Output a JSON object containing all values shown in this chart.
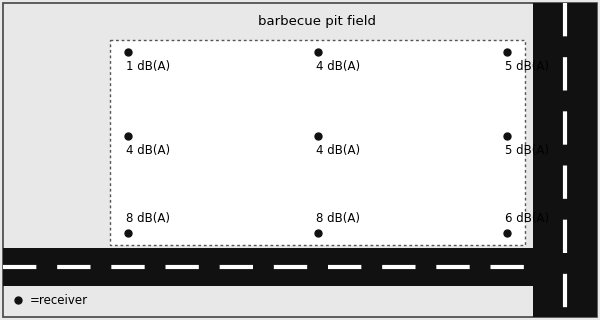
{
  "title": "barbecue pit field",
  "background_color": "#e8e8e8",
  "field_bg_color": "#ffffff",
  "road_color": "#111111",
  "dashed_color": "#ffffff",
  "dot_color": "#111111",
  "dot_size": 5,
  "font_size": 8.5,
  "title_font_size": 9.5,
  "labels": [
    "1 dB(A)",
    "4 dB(A)",
    "5 dB(A)",
    "4 dB(A)",
    "4 dB(A)",
    "5 dB(A)",
    "8 dB(A)",
    "8 dB(A)",
    "6 dB(A)"
  ],
  "legend_text": "=receiver"
}
